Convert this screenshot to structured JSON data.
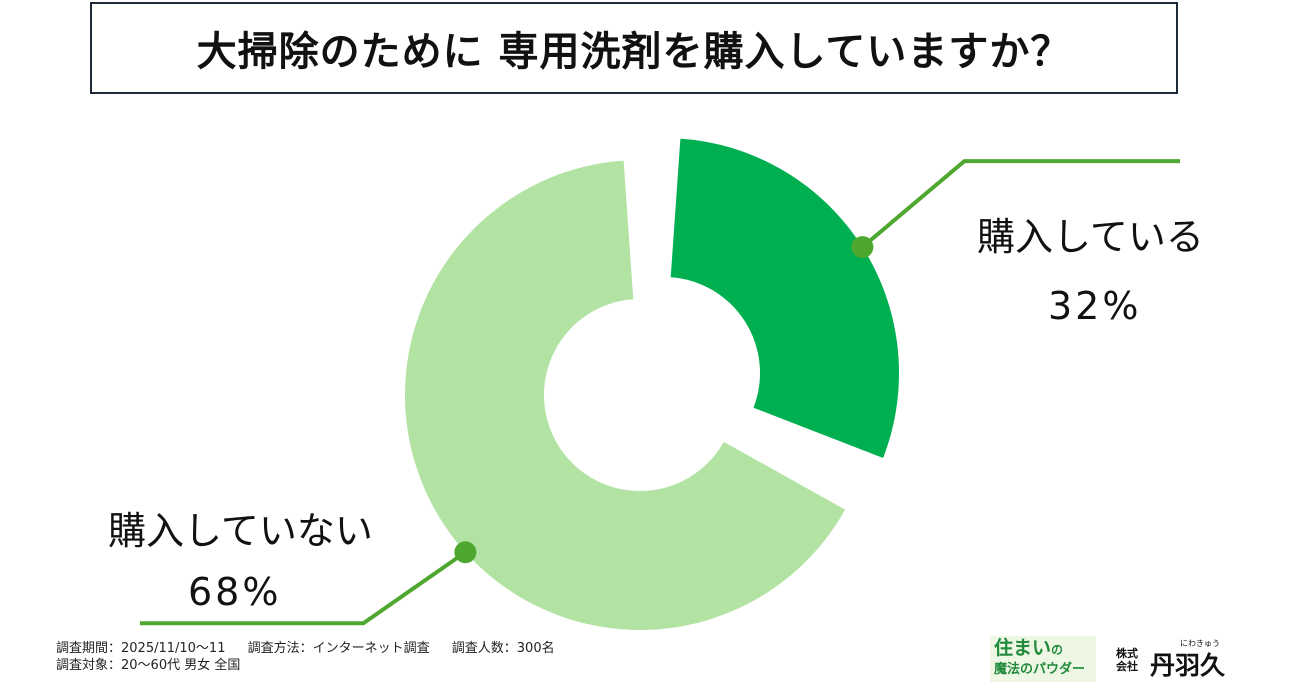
{
  "title": "大掃除のために 専用洗剤を購入していますか？",
  "chart_data": {
    "type": "pie",
    "style": "donut",
    "categories": [
      "購入している",
      "購入していない"
    ],
    "values": [
      32,
      68
    ],
    "value_labels": [
      "32%",
      "68%"
    ],
    "colors": [
      "#00b050",
      "#b3e3a3"
    ],
    "legend": "none",
    "exploded": true
  },
  "leader_color": "#4ea72e",
  "footer": {
    "line1": {
      "period": "調査期間：2025/11/10～11",
      "method": "調査方法：インターネット調査",
      "sample": "調査人数：300名"
    },
    "line2": "調査対象：20～60代 男女 全国"
  },
  "logos": {
    "brand_top": "住まい",
    "brand_top_particle": "の",
    "brand_bottom": "魔法のパウダー",
    "company_kind_1": "株式",
    "company_kind_2": "会社",
    "company_name": "丹羽久",
    "company_ruby": "にわきゅう"
  }
}
